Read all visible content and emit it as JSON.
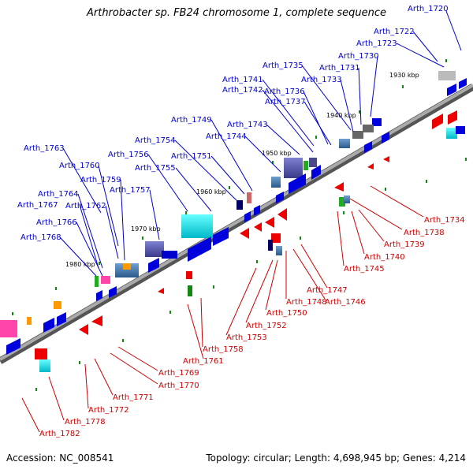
{
  "title": "Arthrobacter sp. FB24 chromosome 1, complete sequence",
  "footer": {
    "accession": "Accession: NC_008541",
    "summary": "Topology: circular; Length: 4,698,945 bp; Genes: 4,214"
  },
  "scale_labels": [
    "1930 kbp",
    "1940 kbp",
    "1950 kbp",
    "1960 kbp",
    "1970 kbp",
    "1980 kbp"
  ],
  "top_genes": [
    "Arth_1720",
    "Arth_1722",
    "Arth_1723",
    "Arth_1730",
    "Arth_1731",
    "Arth_1735",
    "Arth_1733",
    "Arth_1741",
    "Arth_1742",
    "Arth_1736",
    "Arth_1737",
    "Arth_1749",
    "Arth_1743",
    "Arth_1744",
    "Arth_1754",
    "Arth_1751",
    "Arth_1763",
    "Arth_1756",
    "Arth_1760",
    "Arth_1755",
    "Arth_1759",
    "Arth_1757",
    "Arth_1764",
    "Arth_1767",
    "Arth_1762",
    "Arth_1766",
    "Arth_1768"
  ],
  "bottom_genes": [
    "Arth_1734",
    "Arth_1738",
    "Arth_1739",
    "Arth_1740",
    "Arth_1745",
    "Arth_1747",
    "Arth_1746",
    "Arth_1748",
    "Arth_1750",
    "Arth_1752",
    "Arth_1753",
    "Arth_1758",
    "Arth_1761",
    "Arth_1769",
    "Arth_1770",
    "Arth_1771",
    "Arth_1772",
    "Arth_1778",
    "Arth_1782"
  ],
  "colors": {
    "backbone": "#8a8a8a",
    "forward_strand": "#0000ee",
    "reverse_strand": "#ee0000",
    "top_label": "#0000cc",
    "bottom_label": "#cc0000",
    "tick": "#008800"
  }
}
